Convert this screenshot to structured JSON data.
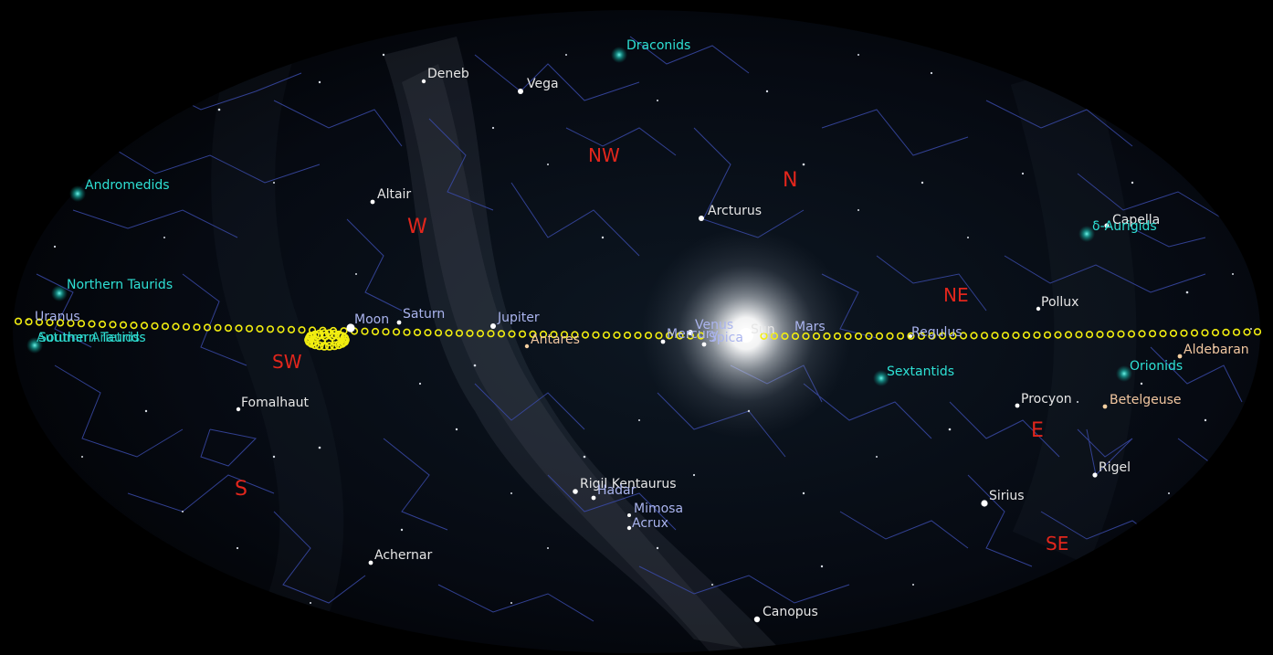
{
  "directions": {
    "n": "N",
    "ne": "NE",
    "e": "E",
    "se": "SE",
    "s": "S",
    "sw": "SW",
    "w": "W",
    "nw": "NW"
  },
  "stars": {
    "deneb": "Deneb",
    "vega": "Vega",
    "altair": "Altair",
    "arcturus": "Arcturus",
    "capella": "Capella",
    "pollux": "Pollux",
    "regulus": "Regulus",
    "spica": "Spica",
    "antares": "Antares",
    "aldebaran": "Aldebaran",
    "procyon": "Procyon",
    "betelgeuse": "Betelgeuse",
    "rigel": "Rigel",
    "sirius": "Sirius",
    "fomalhaut": "Fomalhaut",
    "achernar": "Achernar",
    "canopus": "Canopus",
    "rigil_kentaurus": "Rigil Kentaurus",
    "hadar": "Hadar",
    "mimosa": "Mimosa",
    "acrux": "Acrux"
  },
  "planets": {
    "uranus": "Uranus",
    "moon": "Moon",
    "saturn": "Saturn",
    "jupiter": "Jupiter",
    "venus": "Venus",
    "mercury": "Mercury",
    "sun": "Sun",
    "mars": "Mars"
  },
  "meteor_showers": {
    "draconids": "Draconids",
    "andromedids": "Andromedids",
    "northern_taurids": "Northern Taurids",
    "southern_taurids": "Southern Taurids",
    "aurigids": "δ-Aurigids",
    "sextantids": "Sextantids",
    "orionids": "Orionids",
    "unknown": "Autumn Arietids"
  },
  "colors": {
    "sky": "#000000",
    "direction": "#e2261c",
    "star_label": "#e6e6e6",
    "planet_label": "#aab4ee",
    "shower_label": "#2ee0d4",
    "constellation_line": "#3a4aa8",
    "ecliptic": "#f2ee10"
  }
}
